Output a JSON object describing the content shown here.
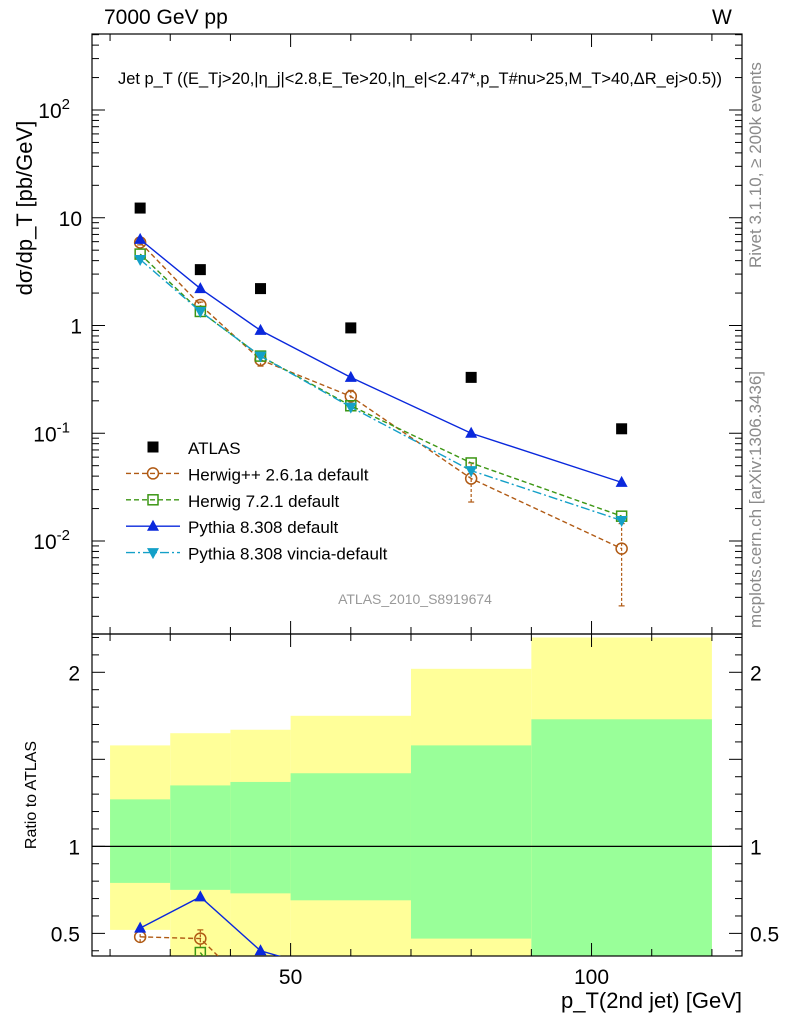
{
  "header": {
    "left": "7000 GeV pp",
    "right": "W"
  },
  "side_labels": {
    "rivet": "Rivet 3.1.10, ≥ 200k events",
    "mcplots": "mcplots.cern.ch [arXiv:1306.3436]"
  },
  "colors": {
    "atlas": "#000000",
    "herwig261": "#b05a14",
    "herwig721": "#3c9614",
    "pythia": "#0a28dc",
    "vincia": "#14a0c8",
    "band_yellow": "#ffff99",
    "band_green": "#99ff99",
    "watermark": "#999999"
  },
  "chart_data": [
    {
      "type": "scatter",
      "panel": "main",
      "title": "Jet p_T ((E_Tj>20,|η_j|<2.8,E_Te>20,|η_e|<2.47*,p_T#nu>25,M_T>40,ΔR_ej>0.5))",
      "ylabel": "dσ/dp_T [pb/GeV]",
      "yscale": "log",
      "ylim": [
        0.002,
        500
      ],
      "xlim": [
        17,
        125
      ],
      "y_tick_labels": [
        "10^-2",
        "10^-1",
        "1",
        "10",
        "10^2"
      ],
      "watermark": "ATLAS_2010_S8919674",
      "legend_position": "lower-left",
      "series": [
        {
          "name": "ATLAS",
          "marker": "square",
          "x": [
            25,
            35,
            45,
            60,
            80,
            105
          ],
          "y": [
            12.3,
            3.3,
            2.2,
            0.95,
            0.33,
            0.11
          ]
        },
        {
          "name": "Herwig++ 2.6.1a default",
          "marker": "open-circle",
          "line": "dashed",
          "x": [
            25,
            35,
            45,
            60,
            80,
            105
          ],
          "y": [
            5.9,
            1.55,
            0.48,
            0.22,
            0.038,
            0.0085
          ],
          "err_low": [
            5.6,
            1.45,
            0.42,
            0.19,
            0.023,
            0.0025
          ],
          "err_high": [
            6.2,
            1.65,
            0.54,
            0.25,
            0.053,
            0.0145
          ]
        },
        {
          "name": "Herwig 7.2.1 default",
          "marker": "open-square",
          "line": "dashed",
          "x": [
            25,
            35,
            45,
            60,
            80,
            105
          ],
          "y": [
            4.6,
            1.35,
            0.52,
            0.18,
            0.053,
            0.017
          ]
        },
        {
          "name": "Pythia 8.308 default",
          "marker": "triangle-up",
          "line": "solid",
          "x": [
            25,
            35,
            45,
            60,
            80,
            105
          ],
          "y": [
            6.3,
            2.2,
            0.9,
            0.33,
            0.1,
            0.035
          ]
        },
        {
          "name": "Pythia 8.308 vincia-default",
          "marker": "triangle-down",
          "line": "dashdot",
          "x": [
            25,
            35,
            45,
            60,
            80,
            105
          ],
          "y": [
            4.1,
            1.35,
            0.52,
            0.175,
            0.045,
            0.0155
          ]
        }
      ]
    },
    {
      "type": "line",
      "panel": "ratio",
      "ylabel": "Ratio to ATLAS",
      "xlabel": "p_T(2nd jet) [GeV]",
      "ylim": [
        0.37,
        2.22
      ],
      "xlim": [
        17,
        125
      ],
      "x_ticks": [
        50,
        100
      ],
      "y_ticks": [
        0.5,
        1,
        2
      ],
      "bands": {
        "edges": [
          20,
          30,
          40,
          50,
          70,
          90,
          120
        ],
        "yellow_low": [
          0.52,
          0.37,
          0.37,
          0.37,
          0.37,
          0.37
        ],
        "yellow_high": [
          1.58,
          1.65,
          1.67,
          1.75,
          2.02,
          2.2
        ],
        "green_low": [
          0.79,
          0.75,
          0.73,
          0.69,
          0.47,
          0.37
        ],
        "green_high": [
          1.27,
          1.35,
          1.37,
          1.42,
          1.58,
          1.73
        ]
      },
      "series": [
        {
          "name": "Herwig++ 2.6.1a default",
          "x": [
            25,
            35,
            40
          ],
          "y": [
            0.48,
            0.47,
            0.3
          ],
          "err_low": [
            0.45,
            0.42,
            0.3
          ],
          "err_high": [
            0.51,
            0.52,
            0.3
          ]
        },
        {
          "name": "Herwig 7.2.1 default",
          "x": [
            35,
            37
          ],
          "y": [
            0.39,
            0.3
          ]
        },
        {
          "name": "Pythia 8.308 default",
          "x": [
            25,
            35,
            45,
            50
          ],
          "y": [
            0.53,
            0.71,
            0.4,
            0.35
          ]
        }
      ]
    }
  ]
}
